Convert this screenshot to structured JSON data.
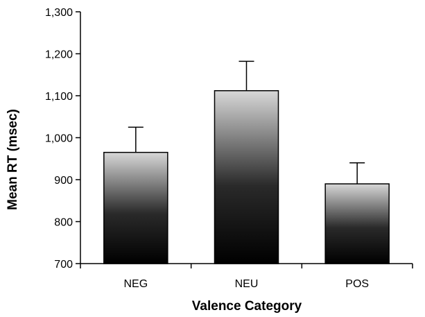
{
  "chart_data": {
    "type": "bar",
    "title": "",
    "xlabel": "Valence Category",
    "ylabel": "Mean RT (msec)",
    "categories": [
      "NEG",
      "NEU",
      "POS"
    ],
    "values": [
      965,
      1112,
      890
    ],
    "error_upper": [
      60,
      70,
      50
    ],
    "ylim": [
      700,
      1300
    ],
    "yticks": [
      700,
      800,
      900,
      1000,
      1100,
      1200,
      1300
    ],
    "ytick_labels": [
      "700",
      "800",
      "900",
      "1,000",
      "1,100",
      "1,200",
      "1,300"
    ],
    "grid": false,
    "legend": "none",
    "bar_fill": "vertical gradient from #d8d8d8 (top) to #000000 (bottom)",
    "colors": {
      "bar_top": "#d8d8d8",
      "bar_bottom": "#000000",
      "axis": "#000000"
    }
  }
}
